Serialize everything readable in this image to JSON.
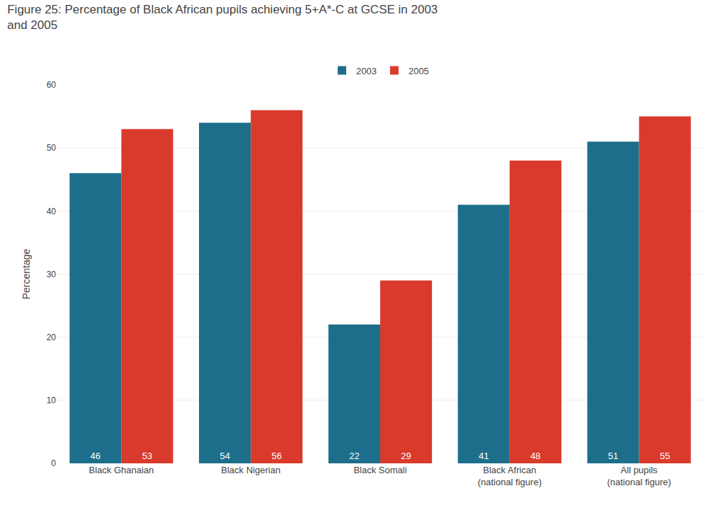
{
  "chart_data": {
    "type": "bar",
    "title": "Figure 25: Percentage of Black African pupils achieving 5+A*-C at GCSE in 2003\nand 2005",
    "categories": [
      "Black Ghanaian",
      "Black Nigerian",
      "Black Somali",
      "Black African\n(national figure)",
      "All pupils\n(national figure)"
    ],
    "series": [
      {
        "name": "2003",
        "color": "#1c6e8a",
        "values": [
          46,
          54,
          22,
          41,
          51
        ]
      },
      {
        "name": "2005",
        "color": "#d93a2b",
        "values": [
          53,
          56,
          29,
          48,
          55
        ]
      }
    ],
    "ylabel": "Percentage",
    "ylim": [
      0,
      60
    ],
    "yticks": [
      0,
      10,
      20,
      30,
      40,
      50,
      60
    ],
    "grid": true,
    "legend": "top",
    "data_labels": true
  }
}
